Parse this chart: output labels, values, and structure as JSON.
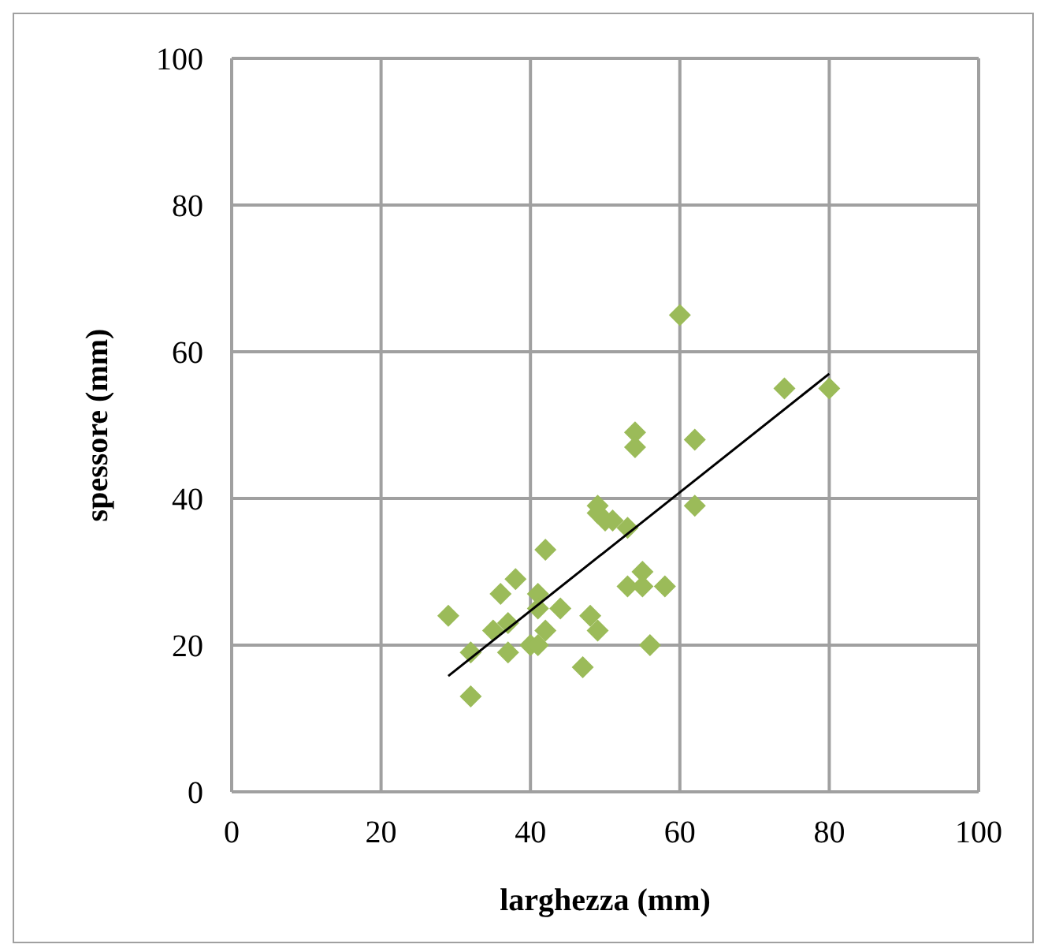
{
  "chart_data": {
    "type": "scatter",
    "xlabel": "larghezza (mm)",
    "ylabel": "spessore (mm)",
    "xlim": [
      0,
      100
    ],
    "xticks": [
      0,
      20,
      40,
      60,
      80,
      100
    ],
    "ylim": [
      0,
      100
    ],
    "yticks": [
      0,
      20,
      40,
      60,
      80,
      100
    ],
    "grid": true,
    "legend": false,
    "marker": "diamond",
    "series": [
      {
        "type": "scatter",
        "color": "#9bbb59",
        "x": [
          29,
          32,
          32,
          35,
          36,
          38,
          37,
          37,
          40,
          41,
          41,
          41,
          42,
          42,
          44,
          47,
          48,
          49,
          49,
          49,
          50,
          51,
          53,
          53,
          55,
          55,
          58,
          56,
          62,
          60,
          74,
          80,
          54,
          54,
          62
        ],
        "values": [
          24,
          19,
          13,
          22,
          27,
          29,
          23,
          19,
          20,
          20,
          27,
          25,
          33,
          22,
          25,
          17,
          24,
          22,
          39,
          38,
          37,
          37,
          36,
          28,
          30,
          28,
          28,
          20,
          39,
          65,
          55,
          55,
          49,
          47,
          48
        ]
      },
      {
        "type": "line",
        "color": "#000000",
        "marker": "none",
        "x": [
          29,
          80
        ],
        "values": [
          15.8,
          57
        ]
      }
    ]
  }
}
